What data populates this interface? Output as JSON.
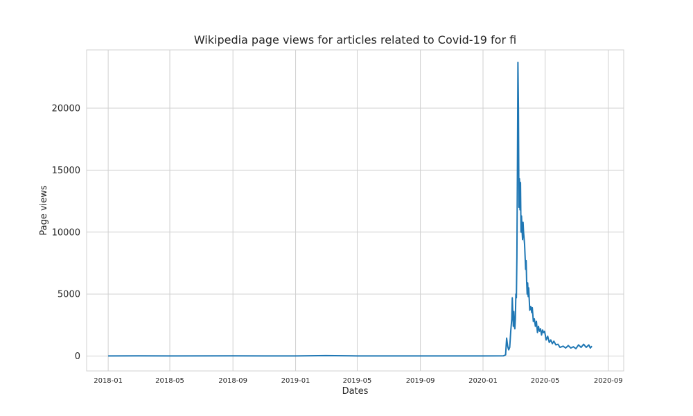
{
  "chart_data": {
    "type": "line",
    "title": "Wikipedia page views for articles related to Covid-19 for fi",
    "xlabel": "Dates",
    "ylabel": "Page views",
    "xlim": [
      "2017-11-20",
      "2020-10-01"
    ],
    "ylim": [
      -1200,
      24700
    ],
    "grid": true,
    "x_ticks": [
      "2018-01",
      "2018-05",
      "2018-09",
      "2019-01",
      "2019-05",
      "2019-09",
      "2020-01",
      "2020-05",
      "2020-09"
    ],
    "y_ticks": [
      0,
      5000,
      10000,
      15000,
      20000
    ],
    "series": [
      {
        "color": "#1f77b4",
        "points": [
          [
            "2018-01-01",
            10
          ],
          [
            "2018-03-01",
            20
          ],
          [
            "2018-05-01",
            10
          ],
          [
            "2018-09-01",
            15
          ],
          [
            "2019-01-01",
            10
          ],
          [
            "2019-03-01",
            40
          ],
          [
            "2019-05-01",
            10
          ],
          [
            "2019-09-01",
            10
          ],
          [
            "2020-01-01",
            10
          ],
          [
            "2020-02-10",
            20
          ],
          [
            "2020-02-14",
            100
          ],
          [
            "2020-02-16",
            1450
          ],
          [
            "2020-02-18",
            800
          ],
          [
            "2020-02-20",
            500
          ],
          [
            "2020-02-22",
            700
          ],
          [
            "2020-02-24",
            2000
          ],
          [
            "2020-02-26",
            3000
          ],
          [
            "2020-02-27",
            4700
          ],
          [
            "2020-02-28",
            3500
          ],
          [
            "2020-02-29",
            2400
          ],
          [
            "2020-03-01",
            3600
          ],
          [
            "2020-03-02",
            2500
          ],
          [
            "2020-03-03",
            2200
          ],
          [
            "2020-03-04",
            3000
          ],
          [
            "2020-03-05",
            5000
          ],
          [
            "2020-03-06",
            4700
          ],
          [
            "2020-03-07",
            8000
          ],
          [
            "2020-03-08",
            15000
          ],
          [
            "2020-03-09",
            23700
          ],
          [
            "2020-03-10",
            20000
          ],
          [
            "2020-03-11",
            12000
          ],
          [
            "2020-03-12",
            14300
          ],
          [
            "2020-03-13",
            11800
          ],
          [
            "2020-03-14",
            14000
          ],
          [
            "2020-03-15",
            10000
          ],
          [
            "2020-03-16",
            11300
          ],
          [
            "2020-03-17",
            10200
          ],
          [
            "2020-03-18",
            9400
          ],
          [
            "2020-03-19",
            10800
          ],
          [
            "2020-03-20",
            10000
          ],
          [
            "2020-03-22",
            9000
          ],
          [
            "2020-03-24",
            7000
          ],
          [
            "2020-03-25",
            7700
          ],
          [
            "2020-03-26",
            6000
          ],
          [
            "2020-03-27",
            5000
          ],
          [
            "2020-03-28",
            5900
          ],
          [
            "2020-03-29",
            4800
          ],
          [
            "2020-03-30",
            5500
          ],
          [
            "2020-04-01",
            3700
          ],
          [
            "2020-04-03",
            4000
          ],
          [
            "2020-04-05",
            3500
          ],
          [
            "2020-04-06",
            3900
          ],
          [
            "2020-04-08",
            2800
          ],
          [
            "2020-04-10",
            3000
          ],
          [
            "2020-04-12",
            2400
          ],
          [
            "2020-04-14",
            2800
          ],
          [
            "2020-04-16",
            1900
          ],
          [
            "2020-04-18",
            2400
          ],
          [
            "2020-04-20",
            2000
          ],
          [
            "2020-04-22",
            2200
          ],
          [
            "2020-04-24",
            1700
          ],
          [
            "2020-04-26",
            2100
          ],
          [
            "2020-04-28",
            1900
          ],
          [
            "2020-04-30",
            2000
          ],
          [
            "2020-05-03",
            1300
          ],
          [
            "2020-05-06",
            1600
          ],
          [
            "2020-05-09",
            1100
          ],
          [
            "2020-05-12",
            1300
          ],
          [
            "2020-05-15",
            1000
          ],
          [
            "2020-05-18",
            1200
          ],
          [
            "2020-05-22",
            900
          ],
          [
            "2020-05-26",
            950
          ],
          [
            "2020-05-30",
            700
          ],
          [
            "2020-06-05",
            800
          ],
          [
            "2020-06-10",
            650
          ],
          [
            "2020-06-15",
            850
          ],
          [
            "2020-06-20",
            650
          ],
          [
            "2020-06-25",
            750
          ],
          [
            "2020-06-30",
            600
          ],
          [
            "2020-07-05",
            900
          ],
          [
            "2020-07-10",
            700
          ],
          [
            "2020-07-15",
            950
          ],
          [
            "2020-07-20",
            700
          ],
          [
            "2020-07-25",
            900
          ],
          [
            "2020-07-28",
            650
          ],
          [
            "2020-07-31",
            800
          ]
        ]
      }
    ]
  }
}
